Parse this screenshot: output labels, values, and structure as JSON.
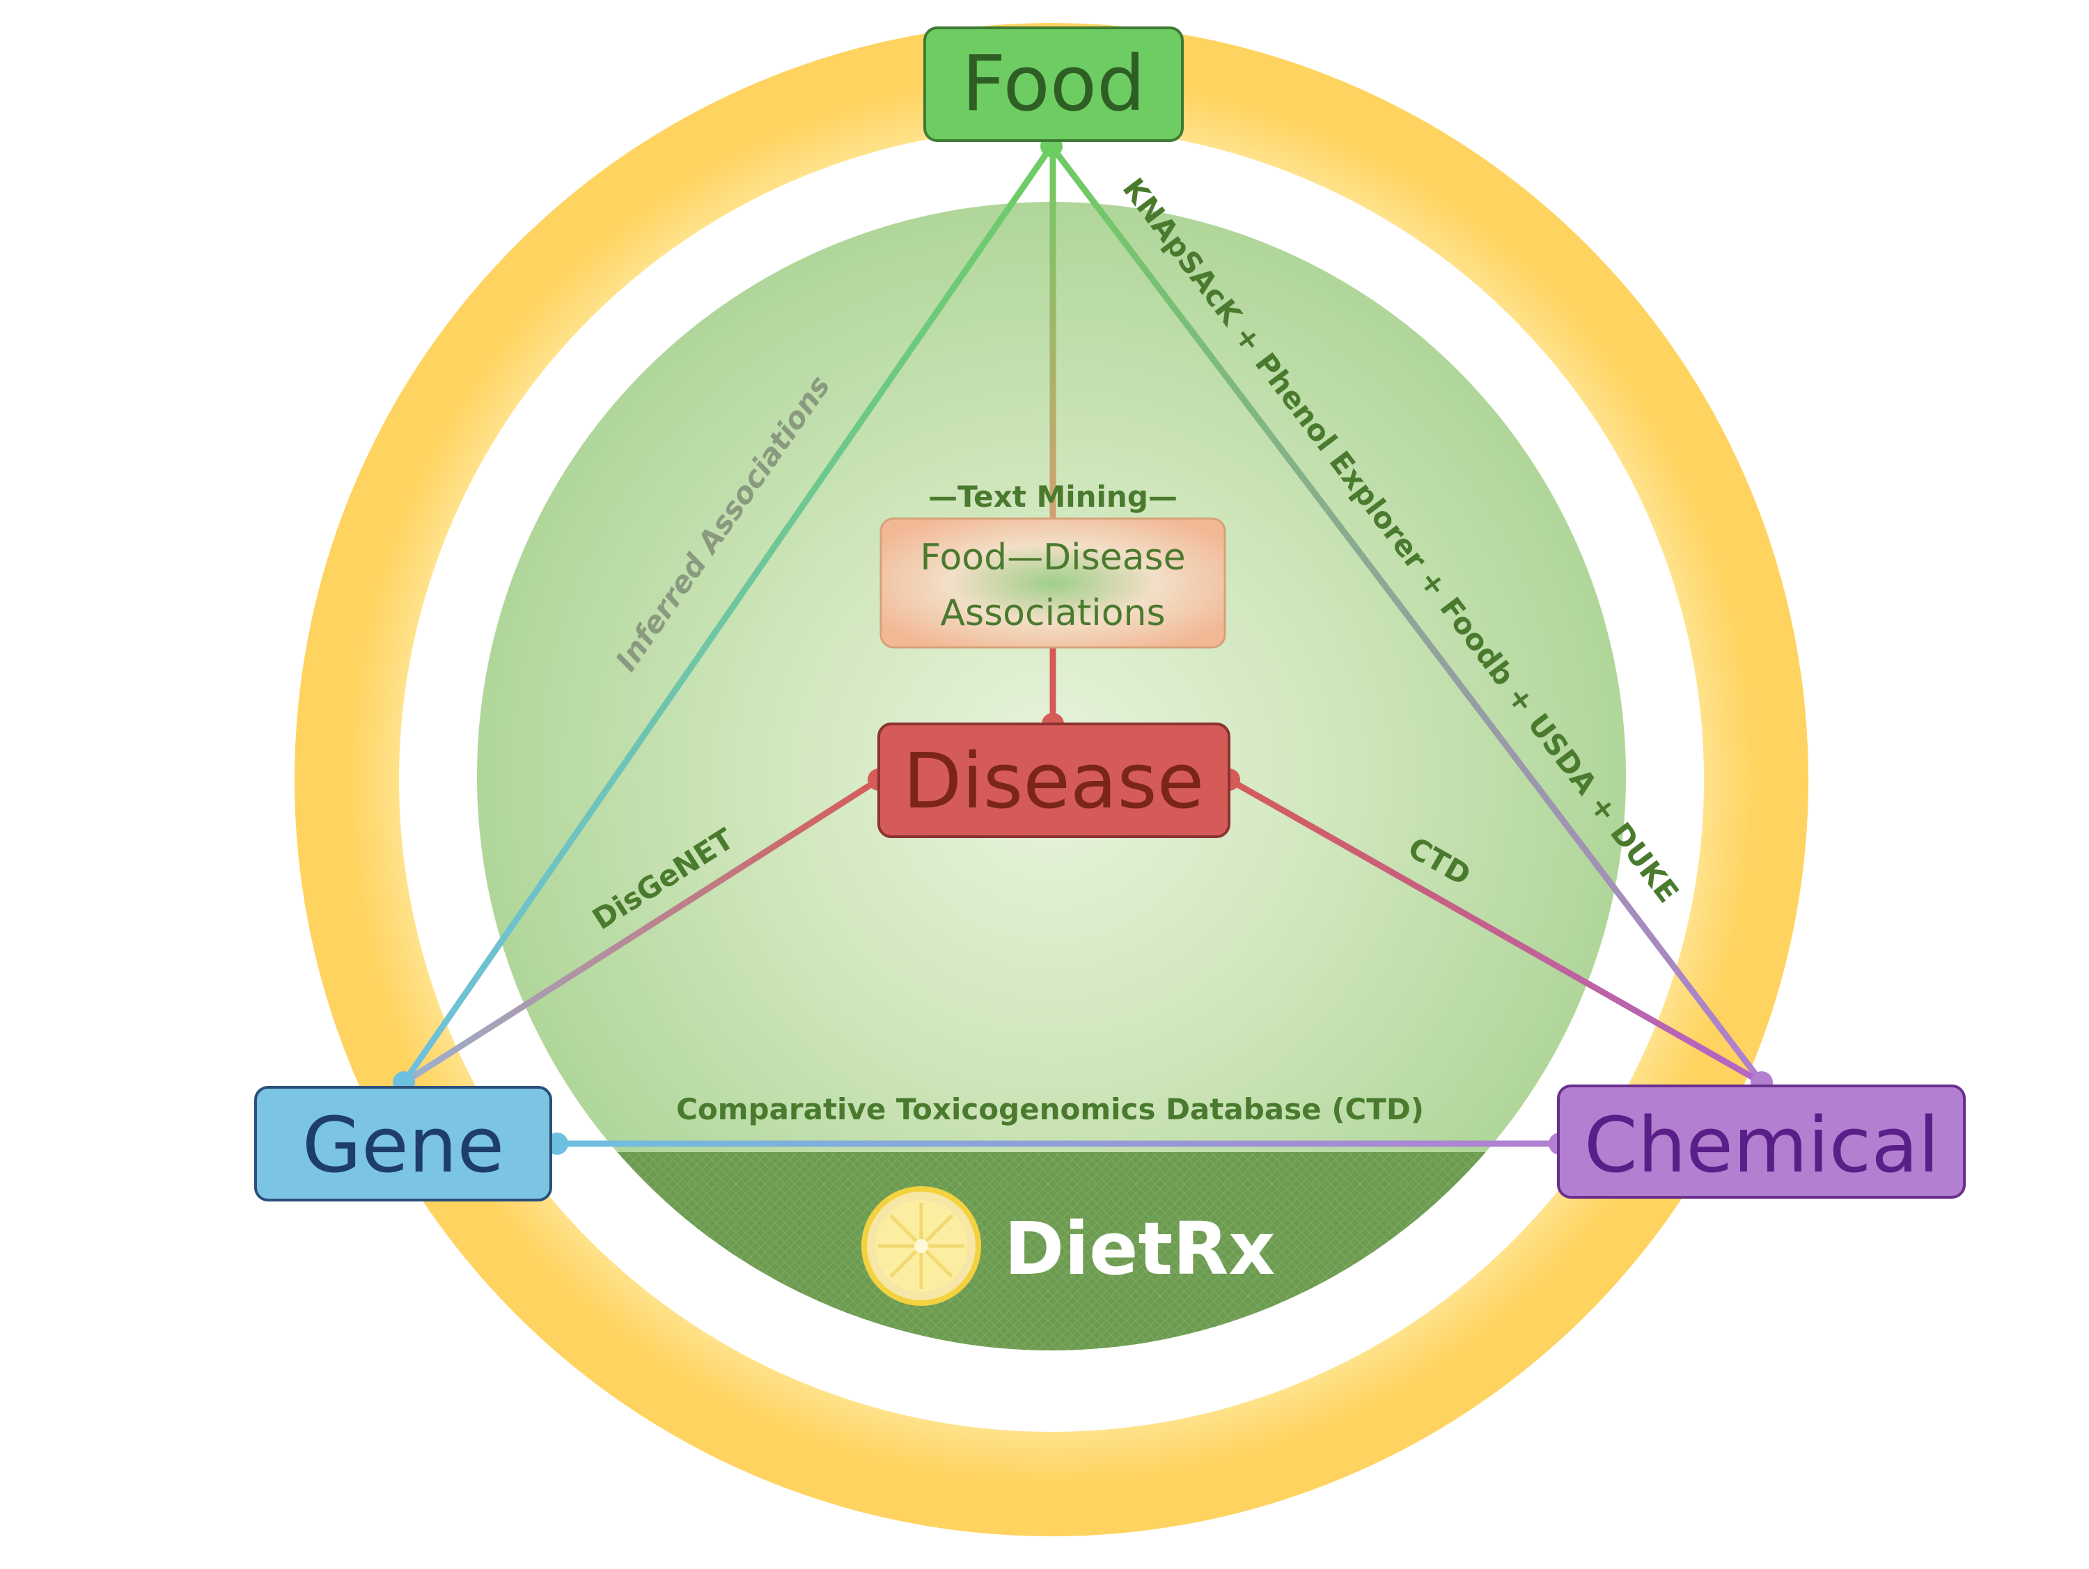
{
  "nodes": {
    "food": "Food",
    "disease": "Disease",
    "gene": "Gene",
    "chemical": "Chemical"
  },
  "center_box": {
    "header": "—Text Mining—",
    "line1": "Food—Disease",
    "line2": "Associations"
  },
  "edge_labels": {
    "food_gene": "Inferred Associations",
    "food_chemical": "KNApSAcK + Phenol Explorer + Foodb + USDA + DUKE",
    "disease_gene": "DisGeNET",
    "disease_chemical": "CTD",
    "gene_chemical": "Comparative Toxicogenomics Database (CTD)"
  },
  "brand": {
    "name": "DietRx",
    "logo_icon": "lemon-slice-icon"
  },
  "colors": {
    "food": "#6dcc62",
    "disease": "#d55b58",
    "gene": "#7bc4e2",
    "chemical": "#b37fd0",
    "ring": "#ffd566",
    "label_text": "#4a7a2e"
  }
}
